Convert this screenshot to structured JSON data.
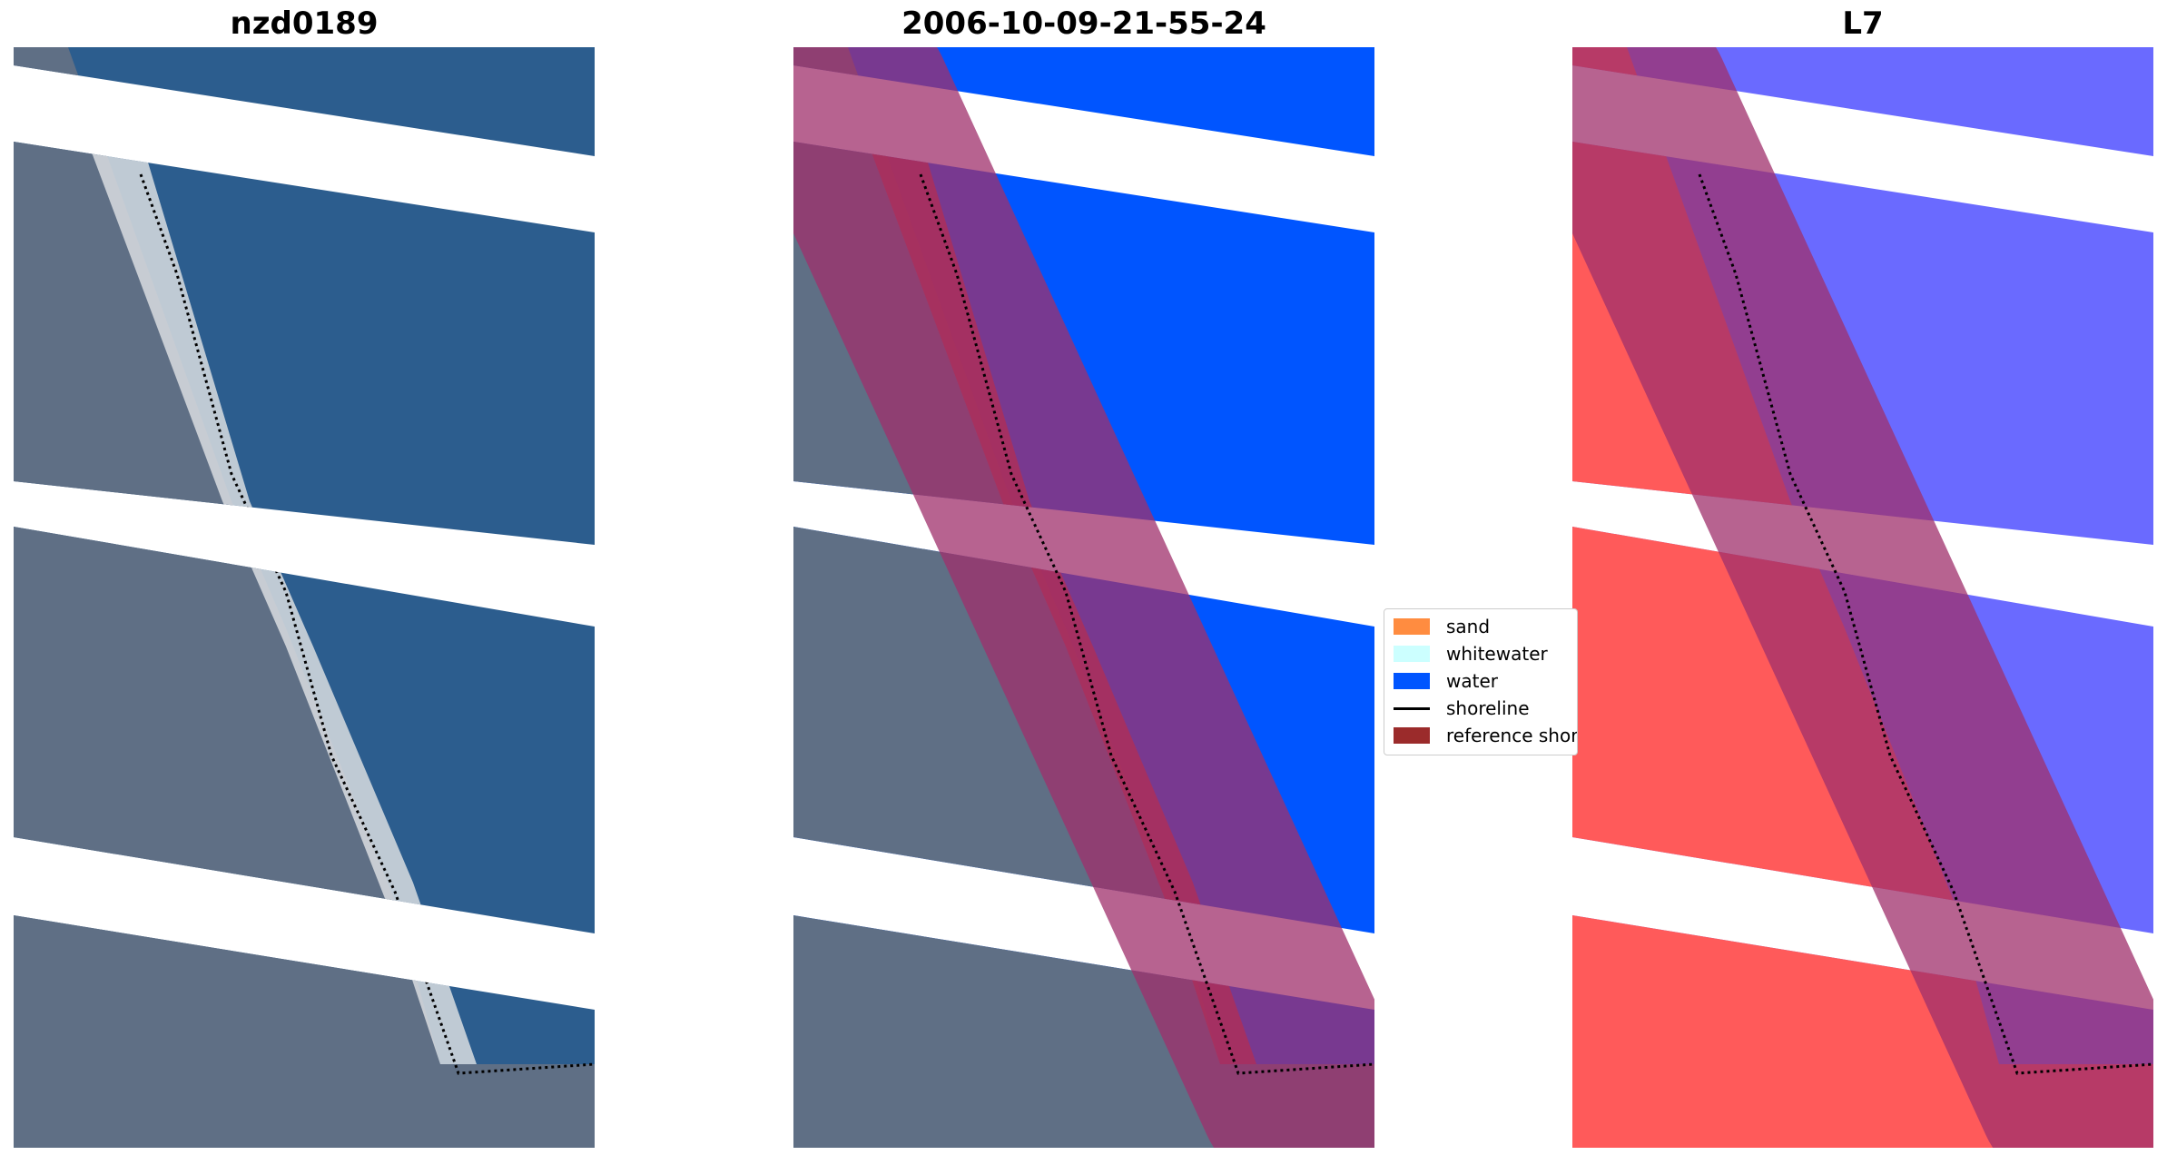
{
  "panels": [
    {
      "title": "nzd0189"
    },
    {
      "title": "2006-10-09-21-55-24"
    },
    {
      "title": "L7"
    }
  ],
  "legend": {
    "items": [
      {
        "label": "sand",
        "color": "#ff8c40"
      },
      {
        "label": "whitewater",
        "color": "#ccffff"
      },
      {
        "label": "water",
        "color": "#0055ff"
      },
      {
        "label": "shoreline",
        "color": "#000000"
      },
      {
        "label": "reference shoreline",
        "color": "#9b2b2b"
      }
    ]
  },
  "colors": {
    "land_rgb": "#5f6f85",
    "sea_rgb": "#2c5d8e",
    "beach": "#d9dde0",
    "water_class": "#0055ff",
    "ref_buffer": "#a0306c",
    "land_red": "#ff5a5a",
    "sea_blue": "#6a6aff"
  }
}
